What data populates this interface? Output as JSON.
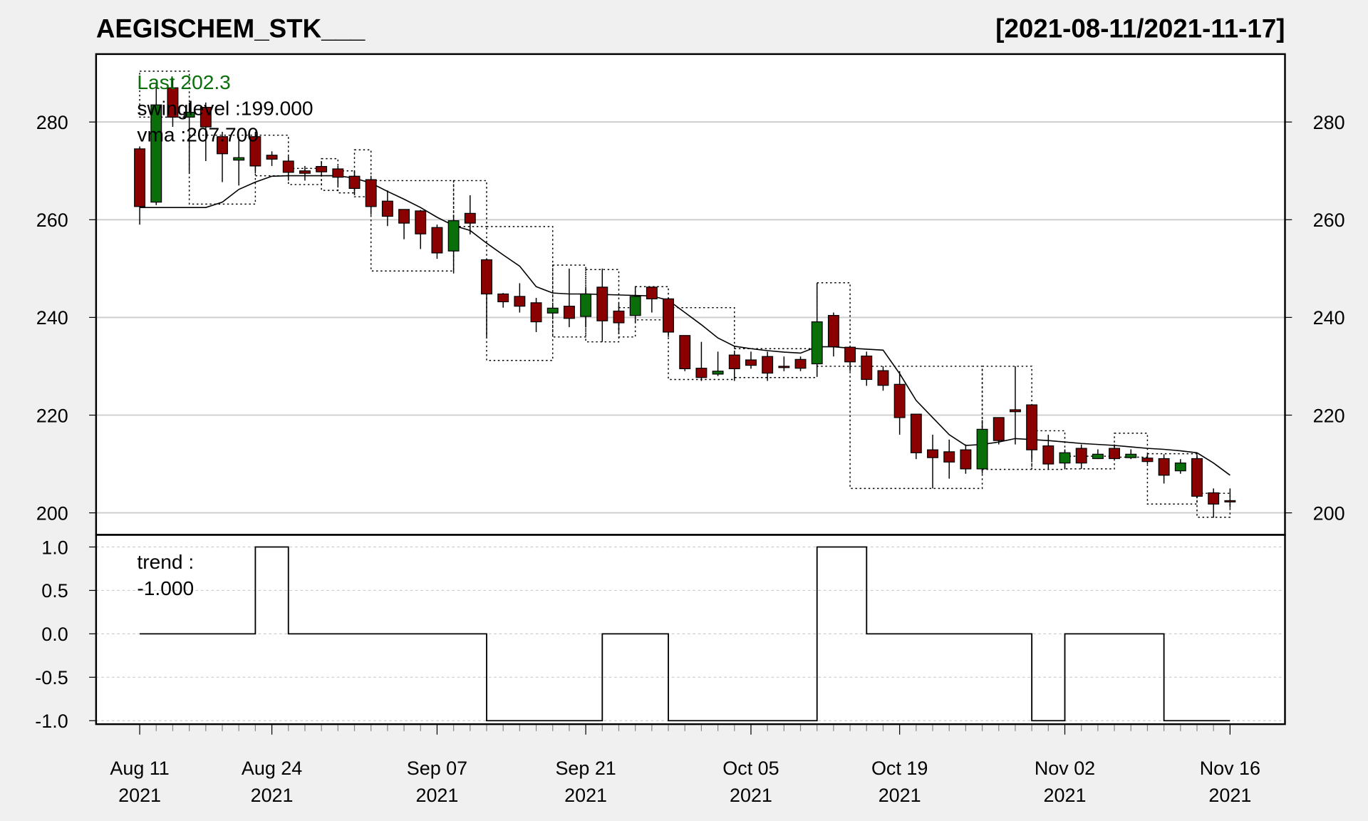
{
  "chart_data": [
    {
      "type": "candlestick",
      "title": "AEGISCHEM_STK___",
      "subtitle": "[2021-08-11/2021-11-17]",
      "annotations": [
        "Last 202.3",
        "swinglevel :199.000",
        "vma :207.700"
      ],
      "up_color": "#0a6e0a",
      "down_color": "#8b0000",
      "grid": true,
      "categories": [
        [
          "Aug 11",
          "2021"
        ],
        null,
        null,
        null,
        null,
        null,
        null,
        null,
        [
          "Aug 24",
          "2021"
        ],
        null,
        null,
        null,
        null,
        null,
        null,
        null,
        null,
        null,
        [
          "Sep 07",
          "2021"
        ],
        null,
        null,
        null,
        null,
        null,
        null,
        null,
        null,
        [
          "Sep 21",
          "2021"
        ],
        null,
        null,
        null,
        null,
        null,
        null,
        null,
        null,
        null,
        [
          "Oct 05",
          "2021"
        ],
        null,
        null,
        null,
        null,
        null,
        null,
        null,
        null,
        [
          "Oct 19",
          "2021"
        ],
        null,
        null,
        null,
        null,
        null,
        null,
        null,
        null,
        null,
        [
          "Nov 02",
          "2021"
        ],
        null,
        null,
        null,
        null,
        null,
        null,
        null,
        null,
        null,
        [
          "Nov 16",
          "2021"
        ]
      ],
      "open": [
        274.5,
        263.6,
        287,
        281,
        283,
        277,
        272.2,
        277,
        273.2,
        272,
        270,
        270.9,
        270.4,
        268.9,
        268.2,
        263.8,
        262.1,
        261.8,
        258.4,
        253.6,
        261.3,
        251.8,
        244.8,
        244.3,
        243,
        240.9,
        242.3,
        240.2,
        246.2,
        241.3,
        240.4,
        246.2,
        243.8,
        236.3,
        229.6,
        228.4,
        232.3,
        231.3,
        232,
        230,
        231.4,
        230.5,
        240.4,
        233.9,
        232.1,
        229.1,
        226.3,
        220.2,
        212.9,
        212.5,
        212.9,
        209,
        219.5,
        221.1,
        222.1,
        213.7,
        210.2,
        213.2,
        211.1,
        213.2,
        211.3,
        211.2,
        211.1,
        208.6,
        211.1,
        204.1,
        202.5
      ],
      "high": [
        275,
        288,
        289,
        284,
        284,
        278,
        277,
        278,
        274,
        273,
        271,
        272,
        271,
        270,
        269,
        266,
        262,
        262,
        259,
        261,
        265,
        252,
        245,
        247,
        244,
        243,
        250,
        246,
        250,
        243,
        246,
        246,
        244,
        236,
        235,
        233,
        233,
        233,
        233,
        232,
        232,
        247,
        241,
        234,
        233,
        230,
        229,
        220,
        216,
        215,
        214,
        219,
        219.5,
        230,
        222,
        216,
        213,
        214,
        213,
        214,
        213,
        212,
        212,
        211,
        212,
        205,
        205
      ],
      "low": [
        259,
        263,
        279,
        269.6,
        272,
        267.7,
        267,
        269.8,
        271,
        268,
        268,
        269,
        267,
        265,
        261,
        258.7,
        256,
        254,
        252,
        249,
        257,
        236,
        242,
        241,
        237,
        240,
        238,
        238,
        235,
        237,
        239,
        241,
        236,
        229,
        227,
        228,
        227,
        229.5,
        227,
        229,
        229,
        228,
        232,
        229,
        226,
        225,
        216,
        211,
        205,
        207,
        208,
        208,
        214,
        214,
        211,
        209,
        209,
        209,
        211,
        211,
        211,
        210,
        206,
        208,
        203,
        199,
        201
      ],
      "close": [
        262.7,
        283.5,
        281,
        282,
        279,
        273.5,
        272.7,
        271,
        272.4,
        269.7,
        269.5,
        269.8,
        268.7,
        266.4,
        262.7,
        260.7,
        259.3,
        257.1,
        253.2,
        259.8,
        259.3,
        244.8,
        243.2,
        242.3,
        239.1,
        241.9,
        239.8,
        244.8,
        239.3,
        238.9,
        244.3,
        243.8,
        237,
        229.5,
        227.7,
        229,
        229.5,
        230.2,
        228.6,
        229.9,
        229.6,
        239.1,
        234,
        230.9,
        227.3,
        226.1,
        219.5,
        212.3,
        211.3,
        210.4,
        209,
        217.1,
        214.8,
        220.7,
        212.9,
        210,
        212.3,
        210.2,
        212,
        211.1,
        212,
        210.5,
        207.7,
        210.2,
        203.4,
        201.8,
        202.3
      ],
      "vma": [
        262.5,
        262.5,
        262.5,
        262.5,
        262.5,
        263.6,
        266.2,
        267.7,
        268.9,
        269,
        269,
        269,
        269,
        268.5,
        267.5,
        265.8,
        264.2,
        262.5,
        260.5,
        258.8,
        257.8,
        255.2,
        252.8,
        250.5,
        246.3,
        245,
        244.8,
        244.8,
        244.7,
        244.6,
        244.5,
        244.4,
        243.5,
        241,
        238.5,
        235.8,
        234.1,
        233.6,
        233.2,
        232.9,
        232.7,
        234,
        234,
        233.7,
        233.5,
        233.3,
        228.5,
        223,
        219.5,
        216,
        213.8,
        214,
        214.5,
        215.2,
        215,
        214.8,
        214.5,
        214.2,
        214,
        213.8,
        213.5,
        213.2,
        213,
        212.7,
        212.3,
        210.2,
        207.7
      ],
      "swing_boxes": [
        {
          "start": 0,
          "end": 3,
          "low": 281,
          "high": 290.4
        },
        {
          "start": 3,
          "end": 7,
          "low": 263.2,
          "high": 277.3
        },
        {
          "start": 7,
          "end": 9,
          "low": 269,
          "high": 277.3
        },
        {
          "start": 9,
          "end": 11,
          "low": 267.2,
          "high": 270.5
        },
        {
          "start": 11,
          "end": 12,
          "low": 266,
          "high": 272.5
        },
        {
          "start": 12,
          "end": 13,
          "low": 265.5,
          "high": 270
        },
        {
          "start": 13,
          "end": 14,
          "low": 264.7,
          "high": 274.3
        },
        {
          "start": 14,
          "end": 19,
          "low": 249.5,
          "high": 268
        },
        {
          "start": 19,
          "end": 21,
          "low": 258.6,
          "high": 268
        },
        {
          "start": 21,
          "end": 25,
          "low": 231.2,
          "high": 258.6
        },
        {
          "start": 25,
          "end": 27,
          "low": 236,
          "high": 250.7
        },
        {
          "start": 27,
          "end": 29,
          "low": 235,
          "high": 249.8
        },
        {
          "start": 29,
          "end": 30,
          "low": 236,
          "high": 242
        },
        {
          "start": 30,
          "end": 32,
          "low": 239.5,
          "high": 246.3
        },
        {
          "start": 32,
          "end": 36,
          "low": 227.3,
          "high": 242
        },
        {
          "start": 36,
          "end": 41,
          "low": 227.7,
          "high": 233.6
        },
        {
          "start": 41,
          "end": 43,
          "low": 230,
          "high": 247.1
        },
        {
          "start": 43,
          "end": 51,
          "low": 205,
          "high": 230
        },
        {
          "start": 51,
          "end": 54,
          "low": 208.9,
          "high": 230
        },
        {
          "start": 54,
          "end": 56,
          "low": 208.9,
          "high": 216.8
        },
        {
          "start": 56,
          "end": 59,
          "low": 209,
          "high": 211.6
        },
        {
          "start": 59,
          "end": 61,
          "low": 211.4,
          "high": 216.3
        },
        {
          "start": 61,
          "end": 64,
          "low": 201.8,
          "high": 212.1
        },
        {
          "start": 64,
          "end": 66,
          "low": 199.1,
          "high": 204
        }
      ],
      "ylim": [
        195.5,
        293.9
      ],
      "yticks": [
        200,
        220,
        240,
        260,
        280
      ]
    },
    {
      "type": "step",
      "annotations": [
        "trend :",
        "-1.000"
      ],
      "grid": true,
      "values": [
        0,
        0,
        0,
        0,
        0,
        0,
        0,
        1,
        1,
        0,
        0,
        0,
        0,
        0,
        0,
        0,
        0,
        0,
        0,
        0,
        0,
        -1,
        -1,
        -1,
        -1,
        -1,
        -1,
        -1,
        0,
        0,
        0,
        0,
        -1,
        -1,
        -1,
        -1,
        -1,
        -1,
        -1,
        -1,
        -1,
        1,
        1,
        1,
        0,
        0,
        0,
        0,
        0,
        0,
        0,
        0,
        0,
        0,
        -1,
        -1,
        0,
        0,
        0,
        0,
        0,
        0,
        -1,
        -1,
        -1,
        -1,
        -1
      ],
      "ylim": [
        -1.04,
        1.14
      ],
      "yticks": [
        {
          "value": -1,
          "label": "-1.0"
        },
        -0.5,
        {
          "value": 0,
          "label": "0.0"
        },
        0.5,
        {
          "value": 1,
          "label": "1.0"
        }
      ]
    }
  ]
}
